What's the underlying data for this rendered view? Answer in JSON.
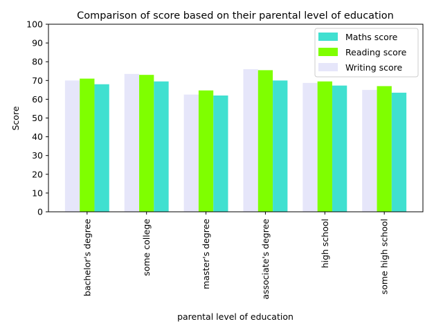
{
  "chart_data": {
    "type": "bar",
    "title": "Comparison of score based on their parental level of education",
    "xlabel": "parental level of education",
    "ylabel": "Score",
    "ylim": [
      0,
      100
    ],
    "yticks": [
      0,
      10,
      20,
      30,
      40,
      50,
      60,
      70,
      80,
      90,
      100
    ],
    "categories": [
      "bachelor's degree",
      "some college",
      "master's degree",
      "associate's degree",
      "high school",
      "some high school"
    ],
    "series": [
      {
        "name": "Writing score",
        "color": "#e6e6fa",
        "values": [
          70,
          73.5,
          62.5,
          76,
          68.7,
          65
        ]
      },
      {
        "name": "Reading score",
        "color": "#7fff00",
        "values": [
          71,
          73,
          64.7,
          75.5,
          69.5,
          67
        ]
      },
      {
        "name": "Maths score",
        "color": "#40e0d0",
        "values": [
          68,
          69.5,
          62,
          70,
          67.3,
          63.5
        ]
      }
    ],
    "legend": {
      "position": "top-right",
      "order": [
        "Maths score",
        "Reading score",
        "Writing score"
      ]
    },
    "grid": false
  }
}
